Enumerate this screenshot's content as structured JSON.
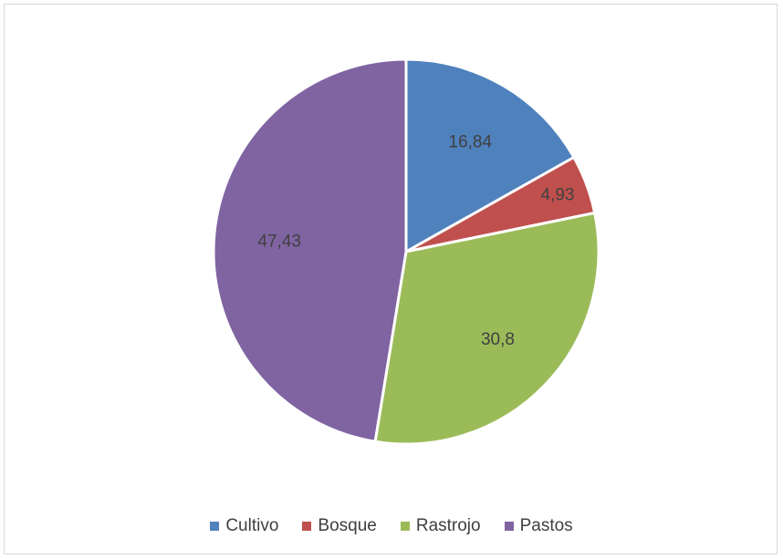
{
  "chart_data": {
    "type": "pie",
    "title": "",
    "categories": [
      "Cultivo",
      "Bosque",
      "Rastrojo",
      "Pastos"
    ],
    "values": [
      16.84,
      4.93,
      30.8,
      47.43
    ],
    "data_labels": [
      "16,84",
      "4,93",
      "30,8",
      "47,43"
    ],
    "colors": [
      "#4f81bd",
      "#c0504d",
      "#9bbb59",
      "#8064a2"
    ],
    "legend_position": "bottom",
    "start_angle_deg": 0,
    "direction": "clockwise"
  },
  "legend": {
    "items": [
      {
        "label": "Cultivo",
        "color": "#4f81bd"
      },
      {
        "label": "Bosque",
        "color": "#c0504d"
      },
      {
        "label": "Rastrojo",
        "color": "#9bbb59"
      },
      {
        "label": "Pastos",
        "color": "#8064a2"
      }
    ]
  }
}
